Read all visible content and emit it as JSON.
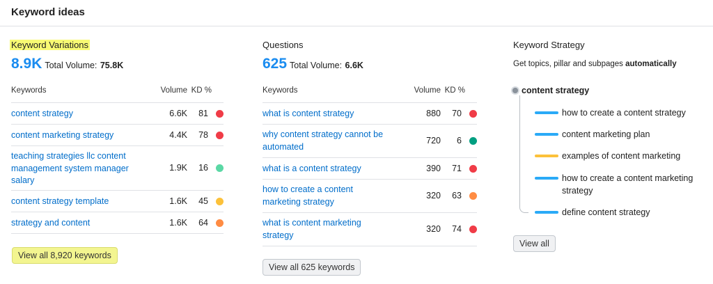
{
  "header": {
    "title": "Keyword ideas"
  },
  "colors": {
    "red": "#f03c47",
    "green": "#009f81",
    "light_green": "#5bd8a5",
    "yellow": "#fcc13a",
    "orange": "#ff8c43",
    "blue_bar": "#2aaaf7",
    "yellow_bar": "#fcc13a"
  },
  "variations": {
    "title": "Keyword Variations",
    "big": "8.9K",
    "total_label": "Total Volume:",
    "total_value": "75.8K",
    "headers": {
      "keywords": "Keywords",
      "volume": "Volume",
      "kd": "KD %"
    },
    "rows": [
      {
        "keyword": "content strategy",
        "volume": "6.6K",
        "kd": "81",
        "dot": "red"
      },
      {
        "keyword": "content marketing strategy",
        "volume": "4.4K",
        "kd": "78",
        "dot": "red"
      },
      {
        "keyword": "teaching strategies llc content management system manager salary",
        "volume": "1.9K",
        "kd": "16",
        "dot": "light_green"
      },
      {
        "keyword": "content strategy template",
        "volume": "1.6K",
        "kd": "45",
        "dot": "yellow"
      },
      {
        "keyword": "strategy and content",
        "volume": "1.6K",
        "kd": "64",
        "dot": "orange"
      }
    ],
    "button": "View all 8,920 keywords"
  },
  "questions": {
    "title": "Questions",
    "big": "625",
    "total_label": "Total Volume:",
    "total_value": "6.6K",
    "headers": {
      "keywords": "Keywords",
      "volume": "Volume",
      "kd": "KD %"
    },
    "rows": [
      {
        "keyword": "what is content strategy",
        "volume": "880",
        "kd": "70",
        "dot": "red"
      },
      {
        "keyword": "why content strategy cannot be automated",
        "volume": "720",
        "kd": "6",
        "dot": "green"
      },
      {
        "keyword": "what is a content strategy",
        "volume": "390",
        "kd": "71",
        "dot": "red"
      },
      {
        "keyword": "how to create a content marketing strategy",
        "volume": "320",
        "kd": "63",
        "dot": "orange"
      },
      {
        "keyword": "what is content marketing strategy",
        "volume": "320",
        "kd": "74",
        "dot": "red"
      }
    ],
    "button": "View all 625 keywords"
  },
  "strategy": {
    "title": "Keyword Strategy",
    "subtitle_pre": "Get topics, pillar and subpages ",
    "subtitle_bold": "automatically",
    "root": "content strategy",
    "items": [
      {
        "label": "how to create a content strategy",
        "bar": "blue_bar"
      },
      {
        "label": "content marketing plan",
        "bar": "blue_bar"
      },
      {
        "label": "examples of content marketing",
        "bar": "yellow_bar"
      },
      {
        "label": "how to create a content marketing strategy",
        "bar": "blue_bar"
      },
      {
        "label": "define content strategy",
        "bar": "blue_bar"
      }
    ],
    "button": "View all"
  }
}
